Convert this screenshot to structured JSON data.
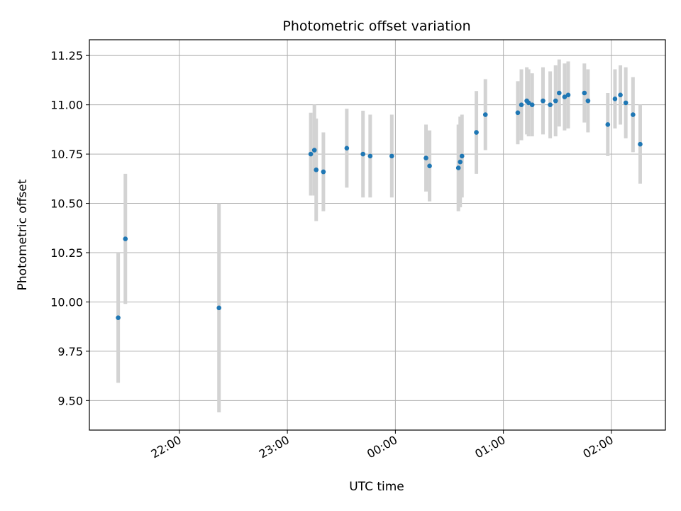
{
  "chart_data": {
    "type": "scatter",
    "title": "Photometric offset variation",
    "xlabel": "UTC time",
    "ylabel": "Photometric offset",
    "xlim": [
      "21:10",
      "02:30"
    ],
    "ylim": [
      9.35,
      11.33
    ],
    "grid": true,
    "x_ticks": [
      "22:00",
      "23:00",
      "00:00",
      "01:00",
      "02:00"
    ],
    "y_ticks": [
      "9.50",
      "9.75",
      "10.00",
      "10.25",
      "10.50",
      "10.75",
      "11.00",
      "11.25"
    ],
    "colors": {
      "marker": "#1f77b4",
      "errorbar": "#d3d3d3",
      "grid": "#b0b0b0"
    },
    "points": [
      {
        "x": "21:26",
        "y": 9.92,
        "err": 0.33
      },
      {
        "x": "21:30",
        "y": 10.32,
        "err": 0.33
      },
      {
        "x": "22:22",
        "y": 9.97,
        "err": 0.53
      },
      {
        "x": "23:13",
        "y": 10.75,
        "err": 0.21
      },
      {
        "x": "23:15",
        "y": 10.77,
        "err": 0.23
      },
      {
        "x": "23:16",
        "y": 10.67,
        "err": 0.26
      },
      {
        "x": "23:20",
        "y": 10.66,
        "err": 0.2
      },
      {
        "x": "23:33",
        "y": 10.78,
        "err": 0.2
      },
      {
        "x": "23:42",
        "y": 10.75,
        "err": 0.22
      },
      {
        "x": "23:46",
        "y": 10.74,
        "err": 0.21
      },
      {
        "x": "23:58",
        "y": 10.74,
        "err": 0.21
      },
      {
        "x": "00:17",
        "y": 10.73,
        "err": 0.17
      },
      {
        "x": "00:19",
        "y": 10.69,
        "err": 0.18
      },
      {
        "x": "00:35",
        "y": 10.68,
        "err": 0.22
      },
      {
        "x": "00:36",
        "y": 10.71,
        "err": 0.23
      },
      {
        "x": "00:37",
        "y": 10.74,
        "err": 0.21
      },
      {
        "x": "00:45",
        "y": 10.86,
        "err": 0.21
      },
      {
        "x": "00:50",
        "y": 10.95,
        "err": 0.18
      },
      {
        "x": "01:08",
        "y": 10.96,
        "err": 0.16
      },
      {
        "x": "01:10",
        "y": 11.0,
        "err": 0.18
      },
      {
        "x": "01:13",
        "y": 11.02,
        "err": 0.17
      },
      {
        "x": "01:14",
        "y": 11.01,
        "err": 0.17
      },
      {
        "x": "01:16",
        "y": 11.0,
        "err": 0.16
      },
      {
        "x": "01:22",
        "y": 11.02,
        "err": 0.17
      },
      {
        "x": "01:26",
        "y": 11.0,
        "err": 0.17
      },
      {
        "x": "01:29",
        "y": 11.02,
        "err": 0.18
      },
      {
        "x": "01:31",
        "y": 11.06,
        "err": 0.17
      },
      {
        "x": "01:34",
        "y": 11.04,
        "err": 0.17
      },
      {
        "x": "01:36",
        "y": 11.05,
        "err": 0.17
      },
      {
        "x": "01:45",
        "y": 11.06,
        "err": 0.15
      },
      {
        "x": "01:47",
        "y": 11.02,
        "err": 0.16
      },
      {
        "x": "01:58",
        "y": 10.9,
        "err": 0.16
      },
      {
        "x": "02:02",
        "y": 11.03,
        "err": 0.15
      },
      {
        "x": "02:05",
        "y": 11.05,
        "err": 0.15
      },
      {
        "x": "02:08",
        "y": 11.01,
        "err": 0.18
      },
      {
        "x": "02:12",
        "y": 10.95,
        "err": 0.19
      },
      {
        "x": "02:16",
        "y": 10.8,
        "err": 0.2
      }
    ]
  }
}
